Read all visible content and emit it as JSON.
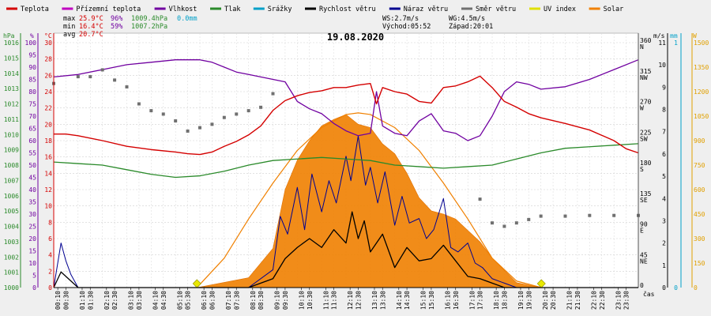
{
  "title": "19.08.2020",
  "legend": [
    {
      "label": "Teplota",
      "color": "#d40000"
    },
    {
      "label": "Přízemní teplota",
      "color": "#c000c0"
    },
    {
      "label": "Vlhkost",
      "color": "#7000a0"
    },
    {
      "label": "Tlak",
      "color": "#2a8a2a"
    },
    {
      "label": "Srážky",
      "color": "#00a0c8"
    },
    {
      "label": "Rychlost větru",
      "color": "#000000"
    },
    {
      "label": "Náraz větru",
      "color": "#000090"
    },
    {
      "label": "Směr větru",
      "color": "#707070"
    },
    {
      "label": "UV index",
      "color": "#e0e000"
    },
    {
      "label": "Solar",
      "color": "#f08000"
    }
  ],
  "stats": {
    "max_label": "max",
    "max_temp": "25.9°C",
    "max_hum": "96%",
    "max_press": "1009.4hPa",
    "rain": "0.0mm",
    "min_label": "min",
    "min_temp": "16.4°C",
    "min_hum": "59%",
    "min_press": "1007.2hPa",
    "avg_label": "avg",
    "avg_temp": "20.7°C",
    "ws": "WS:2.7m/s",
    "wg": "WG:4.5m/s",
    "sunrise": "Východ:05:52",
    "sunset": "Západ:20:01"
  },
  "axes": {
    "hpa_unit": "hPa",
    "pct_unit": "%",
    "c_unit": "°C",
    "ms_unit": "m/s",
    "mm_unit": "mm",
    "w_unit": "W",
    "x_unit": "čas",
    "hpa_ticks": [
      "1016",
      "1015",
      "1014",
      "1013",
      "1012",
      "1011",
      "1010",
      "1009",
      "1008",
      "1007",
      "1006",
      "1005",
      "1004",
      "1003",
      "1002",
      "1001",
      "1000"
    ],
    "pct_ticks": [
      "100",
      "95",
      "90",
      "85",
      "80",
      "75",
      "70",
      "65",
      "60",
      "55",
      "50",
      "45",
      "40",
      "35",
      "30",
      "25",
      "20",
      "15",
      "10",
      "5",
      "0"
    ],
    "c_ticks": [
      "30",
      "28",
      "26",
      "24",
      "22",
      "20",
      "18",
      "16",
      "14",
      "12",
      "10",
      "8",
      "6",
      "4",
      "2",
      "0"
    ],
    "dir_ticks": [
      {
        "deg": "360",
        "lbl": "N"
      },
      {
        "deg": "315",
        "lbl": "NW"
      },
      {
        "deg": "270",
        "lbl": "W"
      },
      {
        "deg": "225",
        "lbl": "SW"
      },
      {
        "deg": "180",
        "lbl": "S"
      },
      {
        "deg": "135",
        "lbl": "SE"
      },
      {
        "deg": "90",
        "lbl": "E"
      },
      {
        "deg": "45",
        "lbl": "NE"
      },
      {
        "deg": "0",
        "lbl": ""
      }
    ],
    "ms_ticks": [
      "11",
      "10",
      "9",
      "8",
      "7",
      "6",
      "5",
      "4",
      "3",
      "2",
      "1",
      "0"
    ],
    "mm_ticks": [
      "1",
      "0"
    ],
    "w_ticks": [
      "1500",
      "1350",
      "1200",
      "1050",
      "900",
      "750",
      "600",
      "450",
      "300",
      "150",
      "0"
    ],
    "time_ticks": [
      "00:10",
      "00:30",
      "01:10",
      "01:30",
      "02:10",
      "02:30",
      "03:10",
      "03:30",
      "04:10",
      "04:30",
      "05:10",
      "05:30",
      "06:10",
      "06:30",
      "07:10",
      "07:30",
      "08:10",
      "08:30",
      "09:10",
      "09:30",
      "10:10",
      "10:30",
      "11:10",
      "11:30",
      "12:10",
      "12:30",
      "13:10",
      "13:30",
      "14:10",
      "14:30",
      "15:10",
      "15:30",
      "16:10",
      "16:30",
      "17:10",
      "17:30",
      "18:10",
      "18:30",
      "19:10",
      "19:30",
      "20:10",
      "20:30",
      "21:10",
      "21:30",
      "22:10",
      "22:30",
      "23:10",
      "23:30"
    ]
  },
  "chart_data": {
    "type": "line",
    "title": "19.08.2020",
    "x_unit": "hours",
    "xlim": [
      0,
      24
    ],
    "temperature_C": {
      "name": "Teplota",
      "ylim": [
        0,
        30
      ],
      "x": [
        0,
        0.5,
        1,
        2,
        3,
        4,
        5,
        5.5,
        6,
        6.5,
        7,
        7.5,
        8,
        8.5,
        9,
        9.5,
        10,
        10.5,
        11,
        11.5,
        12,
        12.5,
        13,
        13.25,
        13.5,
        14,
        14.5,
        15,
        15.5,
        16,
        16.5,
        17,
        17.5,
        18,
        18.5,
        19,
        19.5,
        20,
        21,
        22,
        23,
        23.5,
        24
      ],
      "y": [
        18.8,
        18.8,
        18.6,
        18.0,
        17.3,
        16.9,
        16.6,
        16.4,
        16.3,
        16.6,
        17.3,
        17.9,
        18.7,
        19.8,
        21.7,
        22.9,
        23.5,
        23.9,
        24.1,
        24.5,
        24.5,
        24.8,
        25.0,
        22.5,
        24.5,
        24.0,
        23.7,
        22.8,
        22.6,
        24.5,
        24.7,
        25.2,
        25.9,
        24.5,
        22.8,
        22.1,
        21.3,
        20.8,
        20.1,
        19.3,
        18.0,
        17.0,
        16.5
      ]
    },
    "humidity_pct": {
      "name": "Vlhkost",
      "ylim": [
        0,
        100
      ],
      "x": [
        0,
        1,
        2,
        3,
        4,
        5,
        5.5,
        6,
        6.5,
        7,
        7.5,
        8,
        8.5,
        9,
        9.5,
        10,
        10.5,
        11,
        11.5,
        12,
        12.5,
        13,
        13.25,
        13.5,
        14,
        14.5,
        15,
        15.5,
        16,
        16.5,
        17,
        17.5,
        18,
        18.5,
        19,
        19.5,
        20,
        21,
        22,
        23,
        24
      ],
      "y": [
        86,
        87,
        89,
        91,
        92,
        93,
        93,
        93,
        92,
        90,
        88,
        87,
        86,
        85,
        84,
        76,
        73,
        71,
        67,
        64,
        62,
        63,
        80,
        66,
        63,
        62,
        68,
        71,
        64,
        63,
        60,
        62,
        70,
        80,
        84,
        83,
        81,
        82,
        85,
        89,
        93
      ]
    },
    "pressure_hPa": {
      "name": "Tlak",
      "ylim": [
        1000,
        1016
      ],
      "x": [
        0,
        1,
        2,
        3,
        4,
        5,
        6,
        7,
        8,
        9,
        10,
        11,
        12,
        13,
        14,
        15,
        16,
        17,
        18,
        19,
        20,
        21,
        22,
        23,
        24
      ],
      "y": [
        1008.2,
        1008.1,
        1008.0,
        1007.7,
        1007.4,
        1007.2,
        1007.3,
        1007.6,
        1008.0,
        1008.3,
        1008.4,
        1008.5,
        1008.4,
        1008.3,
        1008.0,
        1007.9,
        1007.8,
        1007.9,
        1008.0,
        1008.4,
        1008.8,
        1009.1,
        1009.2,
        1009.3,
        1009.4
      ]
    },
    "wind_dir_deg": {
      "name": "Směr větru",
      "ylim": [
        0,
        360
      ],
      "x": [
        0,
        1,
        1.5,
        2,
        2.5,
        3,
        3.5,
        4,
        4.5,
        5,
        5.5,
        6,
        6.5,
        7,
        7.5,
        8,
        8.5,
        9,
        17.5,
        18,
        18.5,
        19,
        19.5,
        20,
        21,
        22,
        23,
        24
      ],
      "y": [
        300,
        310,
        310,
        320,
        305,
        295,
        270,
        260,
        255,
        245,
        230,
        235,
        240,
        250,
        255,
        260,
        265,
        285,
        130,
        95,
        90,
        95,
        100,
        105,
        105,
        106,
        106,
        106
      ]
    },
    "wind_speed_ms": {
      "name": "Rychlost větru",
      "ylim": [
        0,
        11
      ],
      "x": [
        0,
        0.3,
        0.5,
        1,
        5,
        8,
        9,
        9.5,
        10,
        10.5,
        11,
        11.5,
        12,
        12.25,
        12.5,
        12.75,
        13,
        13.5,
        14,
        14.5,
        15,
        15.5,
        16,
        16.5,
        17,
        17.5,
        18,
        18.5,
        19,
        24
      ],
      "y": [
        0,
        0.7,
        0.5,
        0,
        0,
        0,
        0.4,
        1.3,
        1.8,
        2.2,
        1.8,
        2.6,
        2.0,
        3.4,
        2.2,
        3.0,
        1.6,
        2.4,
        0.9,
        1.8,
        1.2,
        1.3,
        1.9,
        1.2,
        0.5,
        0.4,
        0.2,
        0,
        0,
        0
      ]
    },
    "wind_gust_ms": {
      "name": "Náraz větru",
      "ylim": [
        0,
        11
      ],
      "x": [
        0,
        0.3,
        0.5,
        0.7,
        1,
        5,
        8,
        9,
        9.3,
        9.6,
        10,
        10.3,
        10.6,
        11,
        11.3,
        11.6,
        12,
        12.2,
        12.5,
        12.8,
        13,
        13.3,
        13.6,
        14,
        14.3,
        14.6,
        15,
        15.3,
        15.6,
        16,
        16.3,
        16.6,
        17,
        17.3,
        17.6,
        18,
        18.5,
        19,
        24
      ],
      "y": [
        0,
        2.0,
        1.2,
        0.6,
        0,
        0,
        0,
        0.8,
        3.2,
        2.4,
        4.5,
        2.6,
        5.1,
        3.4,
        4.8,
        3.8,
        5.9,
        4.8,
        6.8,
        4.6,
        5.4,
        3.8,
        5.2,
        2.8,
        4.1,
        2.9,
        3.1,
        2.2,
        2.6,
        4.0,
        1.8,
        1.6,
        2.0,
        1.1,
        0.9,
        0.4,
        0.2,
        0,
        0
      ]
    },
    "solar_Wm2": {
      "name": "Solar",
      "ylim": [
        0,
        1500
      ],
      "x": [
        5.9,
        8,
        9,
        9.5,
        10,
        10.5,
        11,
        11.5,
        12,
        12.5,
        13,
        13.5,
        14,
        14.5,
        15,
        15.5,
        16,
        16.5,
        17,
        17.5,
        18,
        19,
        20
      ],
      "y": [
        0,
        60,
        240,
        600,
        780,
        900,
        990,
        1030,
        1060,
        1000,
        980,
        880,
        820,
        700,
        550,
        470,
        450,
        420,
        350,
        280,
        180,
        30,
        0
      ]
    },
    "solar_theoretical_Wm2": {
      "ylim": [
        0,
        1500
      ],
      "x": [
        5.88,
        7,
        8,
        9,
        10,
        11,
        12,
        12.5,
        13,
        14,
        15,
        16,
        17,
        18,
        19,
        20.02
      ],
      "y": [
        0,
        180,
        420,
        640,
        840,
        980,
        1060,
        1070,
        1060,
        980,
        840,
        640,
        420,
        180,
        40,
        0
      ]
    },
    "rain_mm": {
      "name": "Srážky",
      "total": 0.0
    },
    "uv_index": {
      "name": "UV index",
      "ylim": [
        0,
        10
      ],
      "x": [
        5.88,
        20.02
      ],
      "y": [
        0,
        0
      ]
    }
  }
}
